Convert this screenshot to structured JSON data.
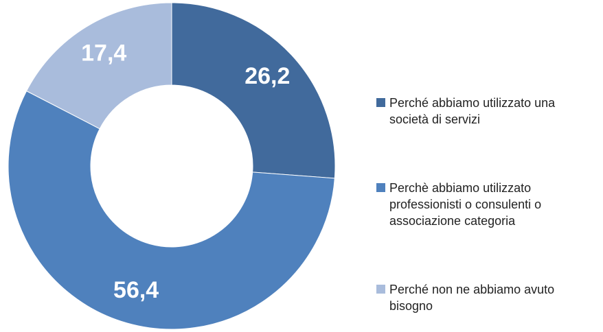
{
  "chart_data": {
    "type": "donut",
    "categories": [
      "Perché abbiamo utilizzato una società di servizi",
      "Perchè abbiamo utilizzato professionisti o consulenti o associazione categoria",
      "Perché non ne abbiamo avuto bisogno"
    ],
    "values": [
      26.2,
      56.4,
      17.4
    ],
    "value_labels": [
      "26,2",
      "56,4",
      "17,4"
    ],
    "colors": [
      "#416a9c",
      "#4f81bd",
      "#a9bcdc"
    ],
    "legend": "right"
  }
}
